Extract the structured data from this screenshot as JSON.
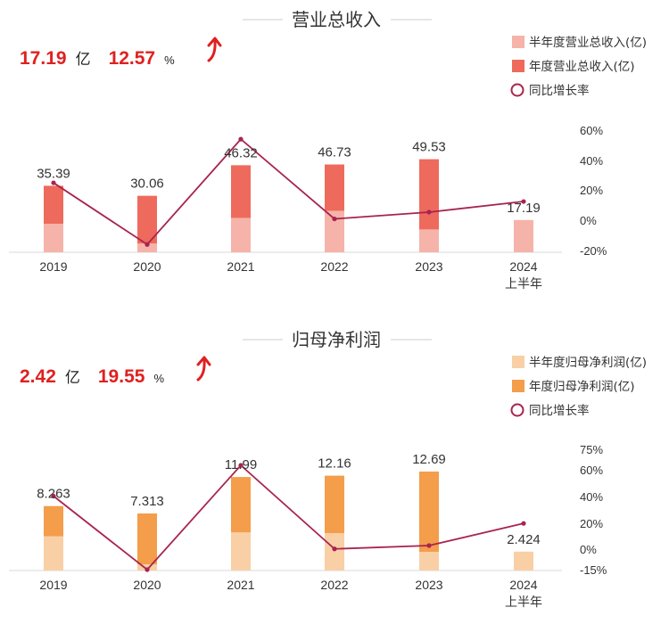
{
  "charts": [
    {
      "title": "营业总收入",
      "kpi": {
        "value": "17.19",
        "unit": "亿",
        "growth": "12.57",
        "pct_sign": "%"
      },
      "legend": [
        {
          "label": "半年度营业总收入(亿)",
          "color": "#f6b3aa",
          "kind": "square"
        },
        {
          "label": "年度营业总收入(亿)",
          "color": "#ee6a5c",
          "kind": "square"
        },
        {
          "label": "同比增长率",
          "color": "#a8244e",
          "kind": "circle"
        }
      ],
      "right_ticks": [
        "60%",
        "40%",
        "20%",
        "0%",
        "-20%"
      ],
      "x_labels": [
        {
          "line1": "2019",
          "line2": ""
        },
        {
          "line1": "2020",
          "line2": ""
        },
        {
          "line1": "2021",
          "line2": ""
        },
        {
          "line1": "2022",
          "line2": ""
        },
        {
          "line1": "2023",
          "line2": ""
        },
        {
          "line1": "2024",
          "line2": "上半年"
        }
      ]
    },
    {
      "title": "归母净利润",
      "kpi": {
        "value": "2.42",
        "unit": "亿",
        "growth": "19.55",
        "pct_sign": "%"
      },
      "legend": [
        {
          "label": "半年度归母净利润(亿)",
          "color": "#f9cfa6",
          "kind": "square"
        },
        {
          "label": "年度归母净利润(亿)",
          "color": "#f49d4b",
          "kind": "square"
        },
        {
          "label": "同比增长率",
          "color": "#a8244e",
          "kind": "circle"
        }
      ],
      "right_ticks": [
        "75%",
        "60%",
        "40%",
        "20%",
        "0%",
        "-15%"
      ],
      "x_labels": [
        {
          "line1": "2019",
          "line2": ""
        },
        {
          "line1": "2020",
          "line2": ""
        },
        {
          "line1": "2021",
          "line2": ""
        },
        {
          "line1": "2022",
          "line2": ""
        },
        {
          "line1": "2023",
          "line2": ""
        },
        {
          "line1": "2024",
          "line2": "上半年"
        }
      ]
    }
  ],
  "chart_data": [
    {
      "type": "bar",
      "title": "营业总收入",
      "categories": [
        "2019",
        "2020",
        "2021",
        "2022",
        "2023",
        "2024 上半年"
      ],
      "series": [
        {
          "name": "半年度营业总收入(亿)",
          "values": [
            15.2,
            4.7,
            18.3,
            22.1,
            12.2,
            17.19
          ],
          "color": "#f6b3aa"
        },
        {
          "name": "年度营业总收入(亿)",
          "values": [
            35.39,
            30.06,
            46.32,
            46.73,
            49.53,
            null
          ],
          "color": "#ee6a5c"
        },
        {
          "name": "同比增长率",
          "values": [
            25,
            -16,
            54,
            1,
            5.5,
            12.57
          ],
          "color": "#a8244e",
          "axis": "right",
          "unit": "%"
        }
      ],
      "data_labels": [
        "35.39",
        "30.06",
        "46.32",
        "46.73",
        "49.53",
        "17.19"
      ],
      "right_axis": {
        "min": -20,
        "max": 60
      },
      "left_axis_max": 65
    },
    {
      "type": "bar",
      "title": "归母净利润",
      "categories": [
        "2019",
        "2020",
        "2021",
        "2022",
        "2023",
        "2024 上半年"
      ],
      "series": [
        {
          "name": "半年度归母净利润(亿)",
          "values": [
            4.4,
            0.8,
            4.9,
            4.8,
            2.4,
            2.424
          ],
          "color": "#f9cfa6"
        },
        {
          "name": "年度归母净利润(亿)",
          "values": [
            8.263,
            7.313,
            11.99,
            12.16,
            12.69,
            null
          ],
          "color": "#f49d4b"
        },
        {
          "name": "同比增长率",
          "values": [
            40,
            -15,
            63,
            0.5,
            3,
            19.55
          ],
          "color": "#a8244e",
          "axis": "right",
          "unit": "%"
        }
      ],
      "data_labels": [
        "8.263",
        "7.313",
        "11.99",
        "12.16",
        "12.69",
        "2.424"
      ],
      "right_axis": {
        "min": -15,
        "max": 75
      },
      "left_axis_max": 16
    }
  ]
}
